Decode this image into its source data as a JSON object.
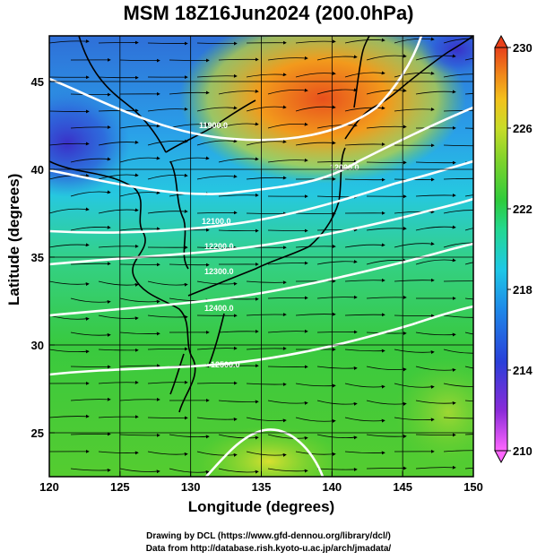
{
  "title": "MSM 18Z16Jun2024 (200.0hPa)",
  "xlabel": "Longitude (degrees)",
  "ylabel": "Latitude  (degrees)",
  "credit_line1": "Drawing by DCL (https://www.gfd-dennou.org/library/dcl/)",
  "credit_line2": "Data from http://database.rish.kyoto-u.ac.jp/arch/jmadata/",
  "chart_data": {
    "type": "heatmap",
    "x_ticks": [
      120,
      125,
      130,
      135,
      140,
      145,
      150
    ],
    "y_ticks": [
      25,
      30,
      35,
      40,
      45
    ],
    "xlim": [
      120,
      150
    ],
    "ylim": [
      22.5,
      47.6
    ],
    "colorbar": {
      "ticks": [
        210,
        214,
        218,
        222,
        226,
        230
      ],
      "range": [
        210,
        230
      ],
      "colors": [
        "#ff66ff",
        "#7a1fd6",
        "#2a3fd9",
        "#1e88e8",
        "#1ec8e6",
        "#23d88f",
        "#2ecb3c",
        "#7fd32c",
        "#c8dc28",
        "#f2c21c",
        "#f08a1a",
        "#e8401a"
      ]
    },
    "contour_labels": [
      "11900.0",
      "12000.0",
      "12100.0",
      "12200.0",
      "12300.0",
      "12400.0",
      "12500.0"
    ],
    "grid": true
  }
}
